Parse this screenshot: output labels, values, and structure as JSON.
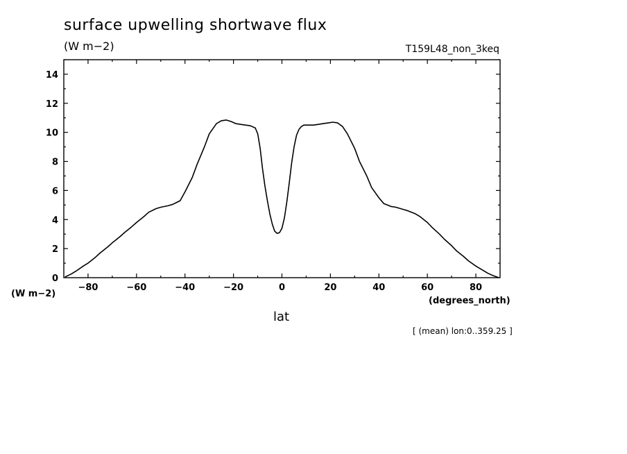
{
  "chart_data": {
    "type": "line",
    "title": "surface upwelling shortwave flux",
    "units": "(W m−2)",
    "y_units_label": "(W m−2)",
    "experiment": "T159L48_non_3keq",
    "xlabel": "lat",
    "x_units": "(degrees_north)",
    "annotation": "[ (mean) lon:0..359.25 ]",
    "xlim": [
      -90,
      90
    ],
    "ylim": [
      0,
      15
    ],
    "xticks": [
      -80,
      -60,
      -40,
      -20,
      0,
      20,
      40,
      60,
      80
    ],
    "xtick_labels": [
      "−80",
      "−60",
      "−40",
      "−20",
      "0",
      "20",
      "40",
      "60",
      "80"
    ],
    "yticks": [
      0,
      2,
      4,
      6,
      8,
      10,
      12,
      14
    ],
    "ytick_labels": [
      "0",
      "2",
      "4",
      "6",
      "8",
      "10",
      "12",
      "14"
    ],
    "grid": false,
    "series": [
      {
        "color": "#000000",
        "x": [
          -89.5,
          -87,
          -85,
          -82,
          -80,
          -77,
          -75,
          -72,
          -70,
          -67,
          -65,
          -62,
          -60,
          -57,
          -55,
          -52,
          -50,
          -47,
          -45,
          -42,
          -40,
          -37,
          -35,
          -32,
          -30,
          -27,
          -25,
          -23,
          -21,
          -19,
          -17,
          -15,
          -13,
          -11,
          -10,
          -9,
          -8,
          -7,
          -6,
          -5,
          -4,
          -3,
          -2,
          -1,
          0,
          1,
          2,
          3,
          4,
          5,
          6,
          7,
          8,
          9,
          10,
          11,
          13,
          15,
          17,
          19,
          21,
          23,
          25,
          27,
          30,
          32,
          35,
          37,
          40,
          42,
          45,
          47,
          50,
          52,
          55,
          57,
          60,
          62,
          65,
          67,
          70,
          72,
          75,
          77,
          80,
          82,
          85,
          87,
          89.5
        ],
        "y": [
          0.05,
          0.25,
          0.45,
          0.8,
          1.0,
          1.4,
          1.7,
          2.1,
          2.4,
          2.8,
          3.1,
          3.5,
          3.8,
          4.2,
          4.5,
          4.75,
          4.85,
          4.95,
          5.05,
          5.3,
          5.9,
          6.9,
          7.8,
          9.0,
          9.9,
          10.6,
          10.8,
          10.85,
          10.75,
          10.6,
          10.55,
          10.5,
          10.45,
          10.3,
          9.9,
          8.9,
          7.5,
          6.3,
          5.3,
          4.4,
          3.7,
          3.2,
          3.05,
          3.1,
          3.4,
          4.1,
          5.2,
          6.5,
          7.9,
          9.0,
          9.8,
          10.2,
          10.4,
          10.5,
          10.5,
          10.5,
          10.5,
          10.55,
          10.6,
          10.65,
          10.7,
          10.65,
          10.4,
          9.9,
          8.9,
          8.0,
          7.0,
          6.2,
          5.5,
          5.1,
          4.9,
          4.85,
          4.7,
          4.6,
          4.4,
          4.2,
          3.8,
          3.45,
          3.0,
          2.65,
          2.2,
          1.85,
          1.45,
          1.15,
          0.8,
          0.6,
          0.3,
          0.15,
          0.0
        ]
      }
    ]
  }
}
